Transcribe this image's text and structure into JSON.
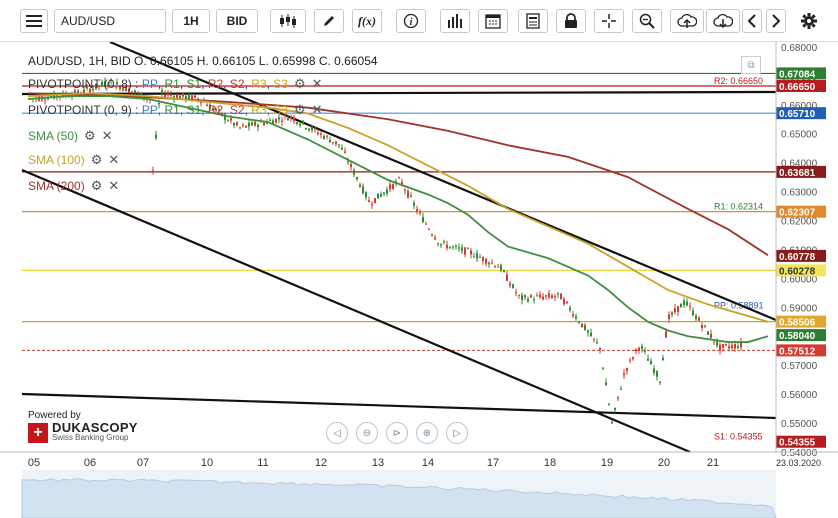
{
  "toolbar": {
    "symbol": "AUD/USD",
    "timeframe": "1H",
    "price_type": "BID",
    "function_label": "f(x)"
  },
  "header": {
    "ohlc_text": "AUD/USD, 1H, BID   O. 0.66105 H. 0.66105 L. 0.65998 C. 0.66054"
  },
  "legend": [
    {
      "name": "PIVOTPOINT (0, 8)",
      "parts": [
        {
          "t": " : ",
          "c": "#333"
        },
        {
          "t": "PP",
          "c": "#3a7bd5"
        },
        {
          "t": ", ",
          "c": "#333"
        },
        {
          "t": "R1",
          "c": "#2e8b2e"
        },
        {
          "t": ", ",
          "c": "#333"
        },
        {
          "t": "S1",
          "c": "#2e8b2e"
        },
        {
          "t": ", ",
          "c": "#333"
        },
        {
          "t": "R2",
          "c": "#c0392b"
        },
        {
          "t": ", ",
          "c": "#333"
        },
        {
          "t": "S2",
          "c": "#c0392b"
        },
        {
          "t": ", ",
          "c": "#333"
        },
        {
          "t": "R3",
          "c": "#d4a017"
        },
        {
          "t": ", ",
          "c": "#333"
        },
        {
          "t": "S3",
          "c": "#d4a017"
        }
      ],
      "color": "#333"
    },
    {
      "name": "PIVOTPOINT (0, 9)",
      "parts": [
        {
          "t": " : ",
          "c": "#333"
        },
        {
          "t": "PP",
          "c": "#3a7bd5"
        },
        {
          "t": ", ",
          "c": "#333"
        },
        {
          "t": "R1",
          "c": "#2e8b2e"
        },
        {
          "t": ", ",
          "c": "#333"
        },
        {
          "t": "S1",
          "c": "#2e8b2e"
        },
        {
          "t": ", ",
          "c": "#333"
        },
        {
          "t": "R2",
          "c": "#c0392b"
        },
        {
          "t": ", ",
          "c": "#333"
        },
        {
          "t": "S2",
          "c": "#c0392b"
        },
        {
          "t": ", ",
          "c": "#333"
        },
        {
          "t": "R3",
          "c": "#d4a017"
        },
        {
          "t": ", ",
          "c": "#333"
        },
        {
          "t": "S3",
          "c": "#d4a017"
        }
      ],
      "color": "#333"
    },
    {
      "name": "SMA (50)",
      "parts": [],
      "color": "#3f8f3f"
    },
    {
      "name": "SMA (100)",
      "parts": [],
      "color": "#c9a227"
    },
    {
      "name": "SMA (200)",
      "parts": [],
      "color": "#a0322a"
    }
  ],
  "branding": {
    "powered_by": "Powered by",
    "name": "DUKASCOPY",
    "tagline": "Swiss Banking Group"
  },
  "colors": {
    "up": "#2e8b2e",
    "down": "#d43a2f",
    "sma50": "#3f8f3f",
    "sma100": "#c9a227",
    "sma200": "#a0322a"
  },
  "chart_data": {
    "type": "candlestick",
    "title": "AUD/USD, 1H, BID",
    "ylim": [
      0.54,
      0.6817
    ],
    "y_ticks": [
      "0.54000",
      "0.55000",
      "0.56000",
      "0.57000",
      "0.58000",
      "0.59000",
      "0.60000",
      "0.61000",
      "0.62000",
      "0.63000",
      "0.64000",
      "0.65000",
      "0.66000",
      "0.67000",
      "0.68000"
    ],
    "x_labels": [
      "05",
      "06",
      "07",
      "10",
      "11",
      "12",
      "13",
      "14",
      "17",
      "18",
      "19",
      "20",
      "21",
      "23.03.2020"
    ],
    "price_labels": [
      {
        "v": 0.67084,
        "text": "0.67084",
        "bg": "#2e7d32",
        "line": "#2e7d32"
      },
      {
        "v": 0.6665,
        "text": "0.66650",
        "bg": "#b71c1c",
        "line": "#b71c1c"
      },
      {
        "v": 0.6571,
        "text": "0.65710",
        "bg": "#1e5fb4",
        "line": "#4a90e2"
      },
      {
        "v": 0.63681,
        "text": "0.63681",
        "bg": "#8b1a1a",
        "line": "#8b1a1a"
      },
      {
        "v": 0.62307,
        "text": "0.62307",
        "bg": "#e08a2c",
        "line": "#e08a2c"
      },
      {
        "v": 0.60778,
        "text": "0.60778",
        "bg": "#8b1a1a",
        "line": null
      },
      {
        "v": 0.60278,
        "text": "0.60278",
        "bg": "#f2e65b",
        "line": "#e6d640"
      },
      {
        "v": 0.58506,
        "text": "0.58506",
        "bg": "#e0a82c",
        "line": "#d4a017"
      },
      {
        "v": 0.5804,
        "text": "0.58040",
        "bg": "#2e7d32",
        "line": null
      },
      {
        "v": 0.57512,
        "text": "0.57512",
        "bg": "#d43a2f",
        "line": "#d43a2f"
      },
      {
        "v": 0.54355,
        "text": "0.54355",
        "bg": "#b71c1c",
        "line": null
      }
    ],
    "pivot_annotations": [
      {
        "text": "R2: 0.66650",
        "v": 0.6665,
        "color": "#b71c1c"
      },
      {
        "text": "R1: 0.62314",
        "v": 0.62314,
        "color": "#2e7d32"
      },
      {
        "text": "PP: 0.58891",
        "v": 0.58891,
        "color": "#1e5fb4"
      },
      {
        "text": "S1: 0.54355",
        "v": 0.54355,
        "color": "#b71c1c"
      }
    ],
    "sma50": [
      [
        0,
        0.662
      ],
      [
        40,
        0.663
      ],
      [
        80,
        0.663
      ],
      [
        120,
        0.662
      ],
      [
        160,
        0.659
      ],
      [
        200,
        0.656
      ],
      [
        240,
        0.654
      ],
      [
        280,
        0.648
      ],
      [
        320,
        0.641
      ],
      [
        360,
        0.634
      ],
      [
        400,
        0.629
      ],
      [
        420,
        0.626
      ],
      [
        440,
        0.622
      ],
      [
        460,
        0.616
      ],
      [
        480,
        0.611
      ],
      [
        500,
        0.609
      ],
      [
        520,
        0.607
      ],
      [
        540,
        0.604
      ],
      [
        560,
        0.601
      ],
      [
        580,
        0.596
      ],
      [
        600,
        0.59
      ],
      [
        620,
        0.585
      ],
      [
        640,
        0.582
      ],
      [
        660,
        0.58
      ],
      [
        680,
        0.579
      ],
      [
        700,
        0.578
      ],
      [
        720,
        0.578
      ],
      [
        740,
        0.58
      ]
    ],
    "sma100": [
      [
        0,
        0.663
      ],
      [
        60,
        0.664
      ],
      [
        120,
        0.663
      ],
      [
        180,
        0.661
      ],
      [
        240,
        0.659
      ],
      [
        280,
        0.657
      ],
      [
        320,
        0.652
      ],
      [
        360,
        0.646
      ],
      [
        400,
        0.639
      ],
      [
        440,
        0.632
      ],
      [
        480,
        0.624
      ],
      [
        520,
        0.618
      ],
      [
        560,
        0.612
      ],
      [
        600,
        0.604
      ],
      [
        640,
        0.596
      ],
      [
        680,
        0.591
      ],
      [
        710,
        0.588
      ],
      [
        740,
        0.585
      ]
    ],
    "sma200": [
      [
        0,
        0.664
      ],
      [
        100,
        0.663
      ],
      [
        200,
        0.661
      ],
      [
        280,
        0.659
      ],
      [
        360,
        0.655
      ],
      [
        420,
        0.651
      ],
      [
        480,
        0.646
      ],
      [
        540,
        0.642
      ],
      [
        600,
        0.635
      ],
      [
        660,
        0.624
      ],
      [
        700,
        0.617
      ],
      [
        740,
        0.608
      ]
    ]
  }
}
